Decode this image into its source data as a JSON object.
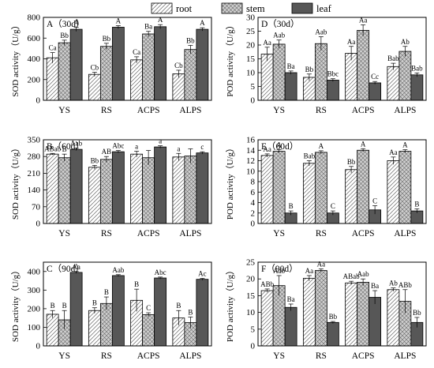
{
  "legend": {
    "position": "top-center",
    "entries": [
      {
        "name": "root",
        "pattern": "diagonal-hatch"
      },
      {
        "name": "stem",
        "pattern": "crosshatch"
      },
      {
        "name": "leaf",
        "pattern": "solid-dark"
      }
    ]
  },
  "colors": {
    "root_fill": "#ffffff",
    "stem_fill": "#c8c8c8",
    "leaf_fill": "#575757",
    "stroke": "#000000"
  },
  "chart_data": [
    {
      "id": "A",
      "title": "A（30d）",
      "type": "bar",
      "ylabel": "SOD activity（U/g）",
      "ylim": [
        0,
        800
      ],
      "yticks": [
        0,
        200,
        400,
        600,
        800
      ],
      "categories": [
        "YS",
        "RS",
        "ACPS",
        "ALPS"
      ],
      "series": [
        {
          "name": "root",
          "values": [
            410,
            250,
            390,
            255
          ],
          "errors": [
            50,
            20,
            30,
            35
          ],
          "labels": [
            "Ca",
            "Cb",
            "Ca",
            "Cb"
          ]
        },
        {
          "name": "stem",
          "values": [
            555,
            520,
            640,
            490
          ],
          "errors": [
            25,
            30,
            25,
            40
          ],
          "labels": [
            "Bb",
            "Bb",
            "Ba",
            "Bb"
          ]
        },
        {
          "name": "leaf",
          "values": [
            685,
            705,
            710,
            685
          ],
          "errors": [
            20,
            15,
            20,
            15
          ],
          "labels": [
            "A",
            "A",
            "A",
            "A"
          ]
        }
      ]
    },
    {
      "id": "D",
      "title": "D（30d）",
      "type": "bar",
      "ylabel": "POD activity（U/g）",
      "ylim": [
        0,
        30
      ],
      "yticks": [
        0,
        5,
        10,
        15,
        20,
        25,
        30
      ],
      "categories": [
        "YS",
        "RS",
        "ACPS",
        "ALPS"
      ],
      "series": [
        {
          "name": "root",
          "values": [
            16.7,
            8.3,
            17.0,
            12.2
          ],
          "errors": [
            2.5,
            1.2,
            2.5,
            1.2
          ],
          "labels": [
            "Aa",
            "Bb",
            "Aa",
            "Bab"
          ]
        },
        {
          "name": "stem",
          "values": [
            20.3,
            20.5,
            25.3,
            17.7
          ],
          "errors": [
            1.5,
            2.5,
            2.0,
            1.8
          ],
          "labels": [
            "Aab",
            "Aab",
            "Aa",
            "Ab"
          ]
        },
        {
          "name": "leaf",
          "values": [
            10.0,
            7.3,
            6.3,
            9.2
          ],
          "errors": [
            0.6,
            0.5,
            0.5,
            0.7
          ],
          "labels": [
            "Ba",
            "Bbc",
            "Cc",
            "Bab"
          ]
        }
      ]
    },
    {
      "id": "B",
      "title": "B（60d）",
      "type": "bar",
      "ylabel": "SOD activity（U/g）",
      "ylim": [
        0,
        350
      ],
      "yticks": [
        0,
        70,
        140,
        210,
        280,
        350
      ],
      "categories": [
        "YS",
        "RS",
        "ACPS",
        "ALPS"
      ],
      "series": [
        {
          "name": "root",
          "values": [
            290,
            235,
            290,
            278
          ],
          "errors": [
            3,
            8,
            12,
            15
          ],
          "labels": [
            "ABab",
            "Bb",
            "a",
            "a"
          ]
        },
        {
          "name": "stem",
          "values": [
            275,
            268,
            275,
            282
          ],
          "errors": [
            15,
            12,
            30,
            30
          ],
          "labels": [
            "B",
            "AB",
            "",
            ""
          ]
        },
        {
          "name": "leaf",
          "values": [
            310,
            300,
            320,
            295
          ],
          "errors": [
            5,
            5,
            5,
            5
          ],
          "labels": [
            "Aab",
            "Abc",
            "a",
            "c"
          ]
        }
      ]
    },
    {
      "id": "E",
      "title": "E（60d）",
      "type": "bar",
      "ylabel": "POD activity（U/g）",
      "ylim": [
        0,
        16
      ],
      "yticks": [
        0,
        2,
        4,
        6,
        8,
        10,
        12,
        14,
        16
      ],
      "categories": [
        "YS",
        "RS",
        "ACPS",
        "ALPS"
      ],
      "series": [
        {
          "name": "root",
          "values": [
            13.0,
            11.5,
            10.3,
            12.0
          ],
          "errors": [
            0.3,
            0.5,
            0.6,
            0.7
          ],
          "labels": [
            "Aa",
            "Bab",
            "Bb",
            "Aa"
          ]
        },
        {
          "name": "stem",
          "values": [
            13.8,
            13.6,
            14.0,
            13.8
          ],
          "errors": [
            0.3,
            0.3,
            0.3,
            0.3
          ],
          "labels": [
            "A",
            "A",
            "A",
            "A"
          ]
        },
        {
          "name": "leaf",
          "values": [
            2.0,
            2.0,
            2.6,
            2.4
          ],
          "errors": [
            0.4,
            0.4,
            0.8,
            0.4
          ],
          "labels": [
            "B",
            "C",
            "C",
            "B"
          ]
        }
      ]
    },
    {
      "id": "C",
      "title": "C（90d）",
      "type": "bar",
      "ylabel": "SOD activity（U/g）",
      "ylim": [
        0,
        450
      ],
      "yticks": [
        0,
        100,
        200,
        300,
        400
      ],
      "categories": [
        "YS",
        "RS",
        "ACPS",
        "ALPS"
      ],
      "series": [
        {
          "name": "root",
          "values": [
            170,
            190,
            245,
            150
          ],
          "errors": [
            20,
            15,
            60,
            40
          ],
          "labels": [
            "B",
            "B",
            "B",
            "B"
          ]
        },
        {
          "name": "stem",
          "values": [
            140,
            228,
            168,
            125
          ],
          "errors": [
            50,
            35,
            10,
            30
          ],
          "labels": [
            "B",
            "B",
            "C",
            "B"
          ]
        },
        {
          "name": "leaf",
          "values": [
            395,
            378,
            365,
            358
          ],
          "errors": [
            5,
            5,
            5,
            5
          ],
          "labels": [
            "Aa",
            "Aab",
            "Abc",
            "Ac"
          ]
        }
      ]
    },
    {
      "id": "F",
      "title": "F（90d）",
      "type": "bar",
      "ylabel": "POD activity（U/g）",
      "ylim": [
        0,
        25
      ],
      "yticks": [
        0,
        5,
        10,
        15,
        20,
        25
      ],
      "categories": [
        "YS",
        "RS",
        "ACPS",
        "ALPS"
      ],
      "series": [
        {
          "name": "root",
          "values": [
            16.5,
            20.2,
            18.8,
            16.8
          ],
          "errors": [
            0.5,
            0.8,
            0.5,
            0.5
          ],
          "labels": [
            "ABb",
            "Aa",
            "ABab",
            "Ab"
          ]
        },
        {
          "name": "stem",
          "values": [
            18.0,
            22.5,
            19.0,
            13.3
          ],
          "errors": [
            3.0,
            0.5,
            1.0,
            3.5
          ],
          "labels": [
            "Aab",
            "Aa",
            "Aab",
            "ABb"
          ]
        },
        {
          "name": "leaf",
          "values": [
            11.5,
            7.0,
            14.5,
            7.0
          ],
          "errors": [
            1.0,
            0.3,
            2.0,
            1.5
          ],
          "labels": [
            "Ba",
            "Bb",
            "Ba",
            "Bb"
          ]
        }
      ]
    }
  ]
}
